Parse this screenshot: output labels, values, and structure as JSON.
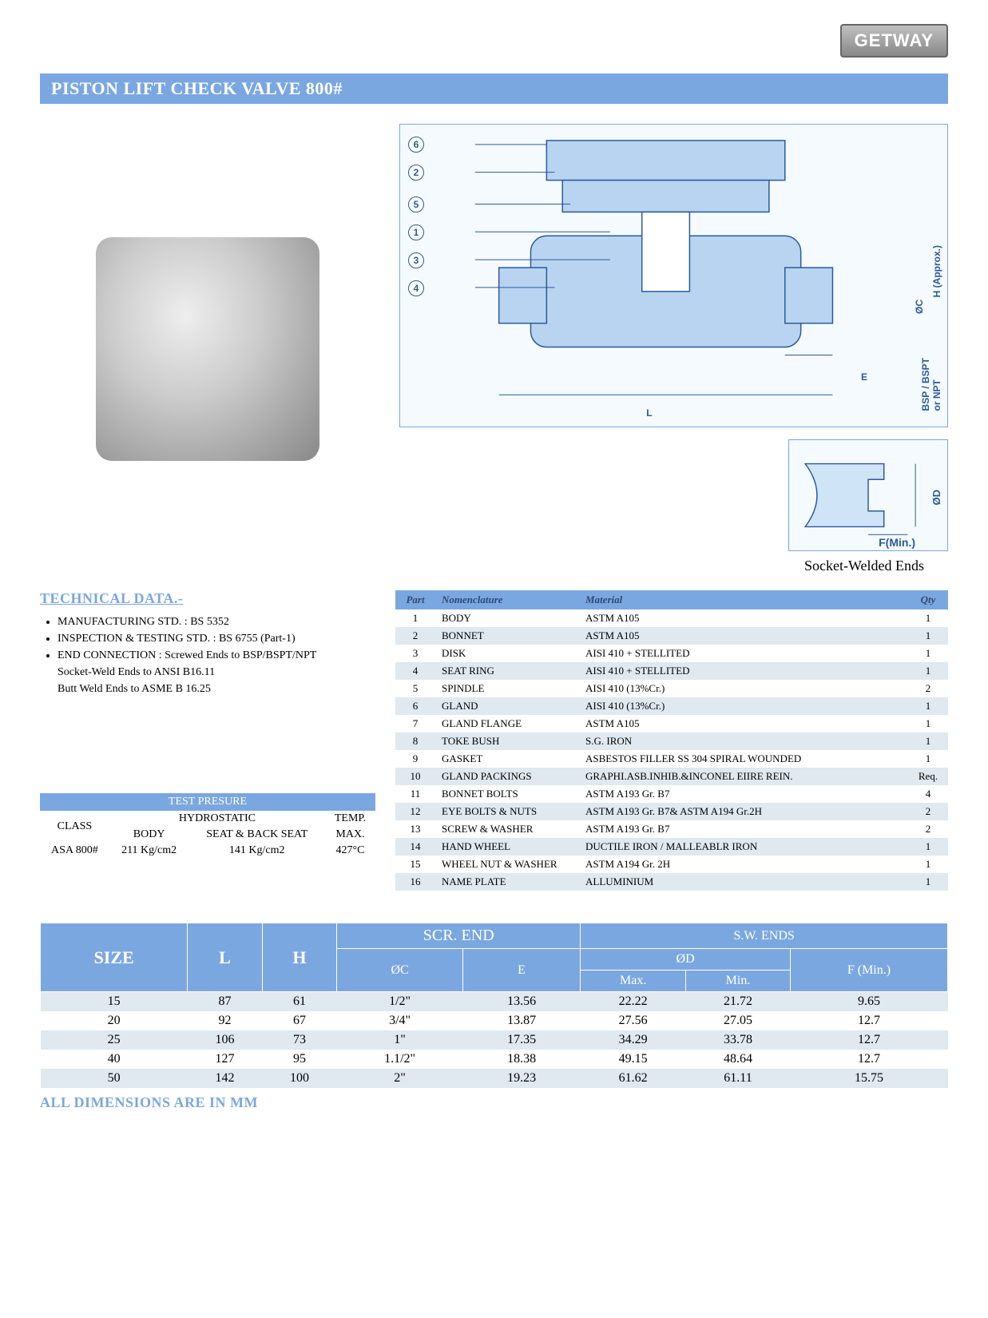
{
  "brand": "GETWAY",
  "page_title": "PISTON LIFT CHECK VALVE  800#",
  "diagram": {
    "callouts": [
      "6",
      "2",
      "5",
      "1",
      "3",
      "4"
    ],
    "dim_L": "L",
    "dim_E": "E",
    "dim_H": "H (Approx.)",
    "dim_OC": "ØC",
    "side_label": "BSP / BSPT\nor NPT"
  },
  "socket": {
    "dim_OD": "ØD",
    "dim_F": "F(Min.)",
    "caption": "Socket-Welded Ends"
  },
  "tech": {
    "title": "TECHNICAL DATA.-",
    "lines": [
      "MANUFACTURING STD. : BS 5352",
      "INSPECTION & TESTING STD. : BS 6755 (Part-1)",
      "END CONNECTION : Screwed Ends to BSP/BSPT/NPT"
    ],
    "sub_lines": [
      "Socket-Weld Ends to ANSI B16.11",
      "Butt Weld Ends to ASME B 16.25"
    ]
  },
  "test_pressure": {
    "title": "TEST PRESURE",
    "cols": {
      "class": "CLASS",
      "hydro": "HYDROSTATIC",
      "temp": "TEMP.",
      "body": "BODY",
      "seat": "SEAT & BACK SEAT",
      "max": "MAX."
    },
    "row": {
      "class": "ASA 800#",
      "body": "211 Kg/cm2",
      "seat": "141 Kg/cm2",
      "max": "427°C"
    }
  },
  "parts": {
    "headers": {
      "part": "Part",
      "nom": "Nomenclature",
      "mat": "Material",
      "qty": "Qty"
    },
    "rows": [
      {
        "n": "1",
        "nom": "BODY",
        "mat": "ASTM A105",
        "qty": "1"
      },
      {
        "n": "2",
        "nom": "BONNET",
        "mat": "ASTM A105",
        "qty": "1"
      },
      {
        "n": "3",
        "nom": "DISK",
        "mat": "AISI 410 + STELLITED",
        "qty": "1"
      },
      {
        "n": "4",
        "nom": "SEAT RING",
        "mat": "AISI 410 + STELLITED",
        "qty": "1"
      },
      {
        "n": "5",
        "nom": "SPINDLE",
        "mat": "AISI 410 (13%Cr.)",
        "qty": "2"
      },
      {
        "n": "6",
        "nom": "GLAND",
        "mat": "AISI 410 (13%Cr.)",
        "qty": "1"
      },
      {
        "n": "7",
        "nom": "GLAND FLANGE",
        "mat": "ASTM A105",
        "qty": "1"
      },
      {
        "n": "8",
        "nom": "TOKE BUSH",
        "mat": "S.G. IRON",
        "qty": "1"
      },
      {
        "n": "9",
        "nom": "GASKET",
        "mat": "ASBESTOS FILLER SS 304 SPIRAL WOUNDED",
        "qty": "1"
      },
      {
        "n": "10",
        "nom": "GLAND PACKINGS",
        "mat": "GRAPHI.ASB.INHIB.&INCONEL EIIRE REIN.",
        "qty": "Req."
      },
      {
        "n": "11",
        "nom": "BONNET BOLTS",
        "mat": "ASTM A193 Gr. B7",
        "qty": "4"
      },
      {
        "n": "12",
        "nom": "EYE BOLTS & NUTS",
        "mat": "ASTM A193 Gr. B7& ASTM A194 Gr.2H",
        "qty": "2"
      },
      {
        "n": "13",
        "nom": "SCREW & WASHER",
        "mat": "ASTM A193 Gr. B7",
        "qty": "2"
      },
      {
        "n": "14",
        "nom": "HAND WHEEL",
        "mat": "DUCTILE IRON / MALLEABLR IRON",
        "qty": "1"
      },
      {
        "n": "15",
        "nom": "WHEEL NUT & WASHER",
        "mat": "ASTM A194 Gr. 2H",
        "qty": "1"
      },
      {
        "n": "16",
        "nom": "NAME PLATE",
        "mat": "ALLUMINIUM",
        "qty": "1"
      }
    ]
  },
  "dims": {
    "headers": {
      "size": "SIZE",
      "L": "L",
      "H": "H",
      "scr": "SCR. END",
      "sw": "S.W. ENDS",
      "OC": "ØC",
      "E": "E",
      "OD": "ØD",
      "F": "F (Min.)",
      "max": "Max.",
      "min": "Min."
    },
    "rows": [
      {
        "size": "15",
        "L": "87",
        "H": "61",
        "OC": "1/2\"",
        "E": "13.56",
        "ODmax": "22.22",
        "ODmin": "21.72",
        "F": "9.65"
      },
      {
        "size": "20",
        "L": "92",
        "H": "67",
        "OC": "3/4\"",
        "E": "13.87",
        "ODmax": "27.56",
        "ODmin": "27.05",
        "F": "12.7"
      },
      {
        "size": "25",
        "L": "106",
        "H": "73",
        "OC": "1\"",
        "E": "17.35",
        "ODmax": "34.29",
        "ODmin": "33.78",
        "F": "12.7"
      },
      {
        "size": "40",
        "L": "127",
        "H": "95",
        "OC": "1.1/2\"",
        "E": "18.38",
        "ODmax": "49.15",
        "ODmin": "48.64",
        "F": "12.7"
      },
      {
        "size": "50",
        "L": "142",
        "H": "100",
        "OC": "2\"",
        "E": "19.23",
        "ODmax": "61.62",
        "ODmin": "61.11",
        "F": "15.75"
      }
    ],
    "note": "ALL DIMENSIONS ARE IN MM"
  }
}
